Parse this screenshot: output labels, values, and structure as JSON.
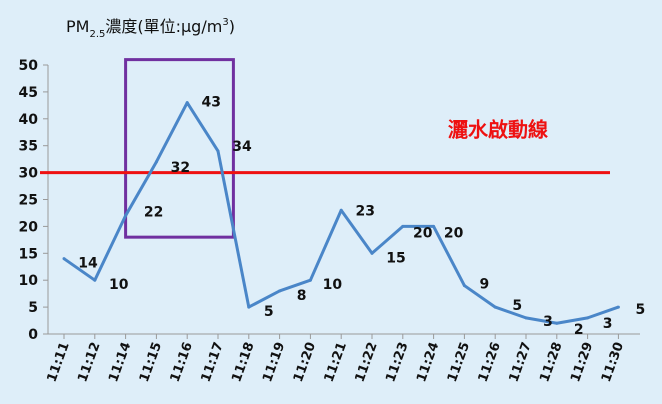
{
  "chart_data": {
    "type": "line",
    "title_main": "PM",
    "title_sub": "2.5",
    "title_unit": "濃度(單位:μg/m",
    "title_sup": "3",
    "title_close": ")",
    "categories": [
      "11:11",
      "11:12",
      "11:14",
      "11:15",
      "11:16",
      "11:17",
      "11:18",
      "11:19",
      "11:20",
      "11:21",
      "11:22",
      "11:23",
      "11:24",
      "11:25",
      "11:26",
      "11:27",
      "11:28",
      "11:29",
      "11:30"
    ],
    "values": [
      14,
      10,
      22,
      32,
      43,
      34,
      5,
      8,
      10,
      23,
      15,
      20,
      20,
      9,
      5,
      3,
      2,
      3,
      5
    ],
    "ylim": [
      0,
      50
    ],
    "yticks": [
      0,
      5,
      10,
      15,
      20,
      25,
      30,
      35,
      40,
      45,
      50
    ],
    "reference_line": {
      "value": 30,
      "label": "灑水啟動線",
      "color": "#ee1111"
    },
    "highlight_box": {
      "x_from": "11:14",
      "x_to": "11:17",
      "y_from": 18,
      "y_to": 51,
      "color": "#7030a0"
    },
    "line_color": "#4a86c8",
    "grid": false
  }
}
